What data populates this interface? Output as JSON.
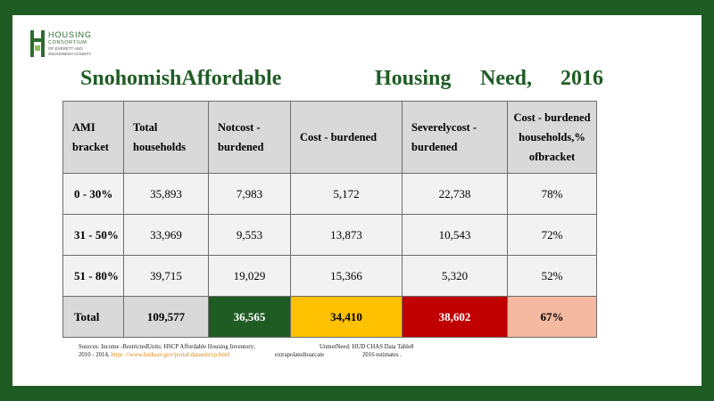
{
  "logo": {
    "line1": "HOUSING",
    "line2": "CONSORTIUM",
    "line3": "OF EVERETT AND",
    "line4": "SNOHOMISH COUNTY"
  },
  "title": {
    "part1": "SnohomishAffordable",
    "part2": "Housing",
    "part3": "Need,",
    "part4": "2016"
  },
  "table": {
    "headers": [
      "AMI bracket",
      "Total households",
      "Notcost - burdened",
      "Cost - burdened",
      "Severelycost - burdened",
      "Cost - burdened households,% ofbracket"
    ],
    "rows": [
      {
        "bracket": "0 - 30%",
        "total": "35,893",
        "not_burdened": "7,983",
        "burdened": "5,172",
        "severe": "22,738",
        "pct": "78%"
      },
      {
        "bracket": "31 - 50%",
        "total": "33,969",
        "not_burdened": "9,553",
        "burdened": "13,873",
        "severe": "10,543",
        "pct": "72%"
      },
      {
        "bracket": "51 - 80%",
        "total": "39,715",
        "not_burdened": "19,029",
        "burdened": "15,366",
        "severe": "5,320",
        "pct": "52%"
      }
    ],
    "total": {
      "label": "Total",
      "total": "109,577",
      "not_burdened": "36,565",
      "burdened": "34,410",
      "severe": "38,602",
      "pct": "67%"
    }
  },
  "sources": {
    "line1": "Sources: Income -RestrictedUnits: HSCP Affordable Housing Inventory;",
    "line1b": "2010 - 2014,",
    "link": "https ://www.huduser.gov/portal/datasets/cp.html",
    "col2a": "UnmetNeed: HUD CHAS Data Table8",
    "col2b": "extrapolatedtoarcate",
    "col3b": "2016 estimates ."
  },
  "colors": {
    "frame": "#1f5c24",
    "title": "#1f5c24",
    "green_light": "#c6e0b4",
    "yellow_light": "#ffe699",
    "red_light": "#ff5b5b",
    "green_dark": "#1f5c24",
    "yellow_dark": "#ffc000",
    "red_dark": "#c00000",
    "salmon": "#f4b9a0"
  }
}
